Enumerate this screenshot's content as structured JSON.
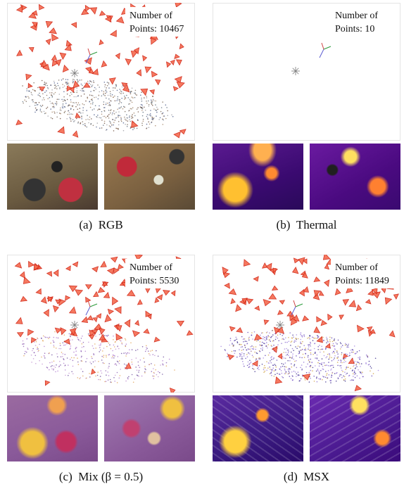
{
  "panels": [
    {
      "count_line1": "Number of",
      "count_line2": "Points: 10467",
      "tag": "(a)",
      "name": "RGB"
    },
    {
      "count_line1": "Number of",
      "count_line2": "Points: 10",
      "tag": "(b)",
      "name": "Thermal"
    },
    {
      "count_line1": "Number of",
      "count_line2": "Points: 5530",
      "tag": "(c)",
      "name": "Mix (β = 0.5)"
    },
    {
      "count_line1": "Number of",
      "count_line2": "Points: 11849",
      "tag": "(d)",
      "name": "MSX"
    }
  ]
}
